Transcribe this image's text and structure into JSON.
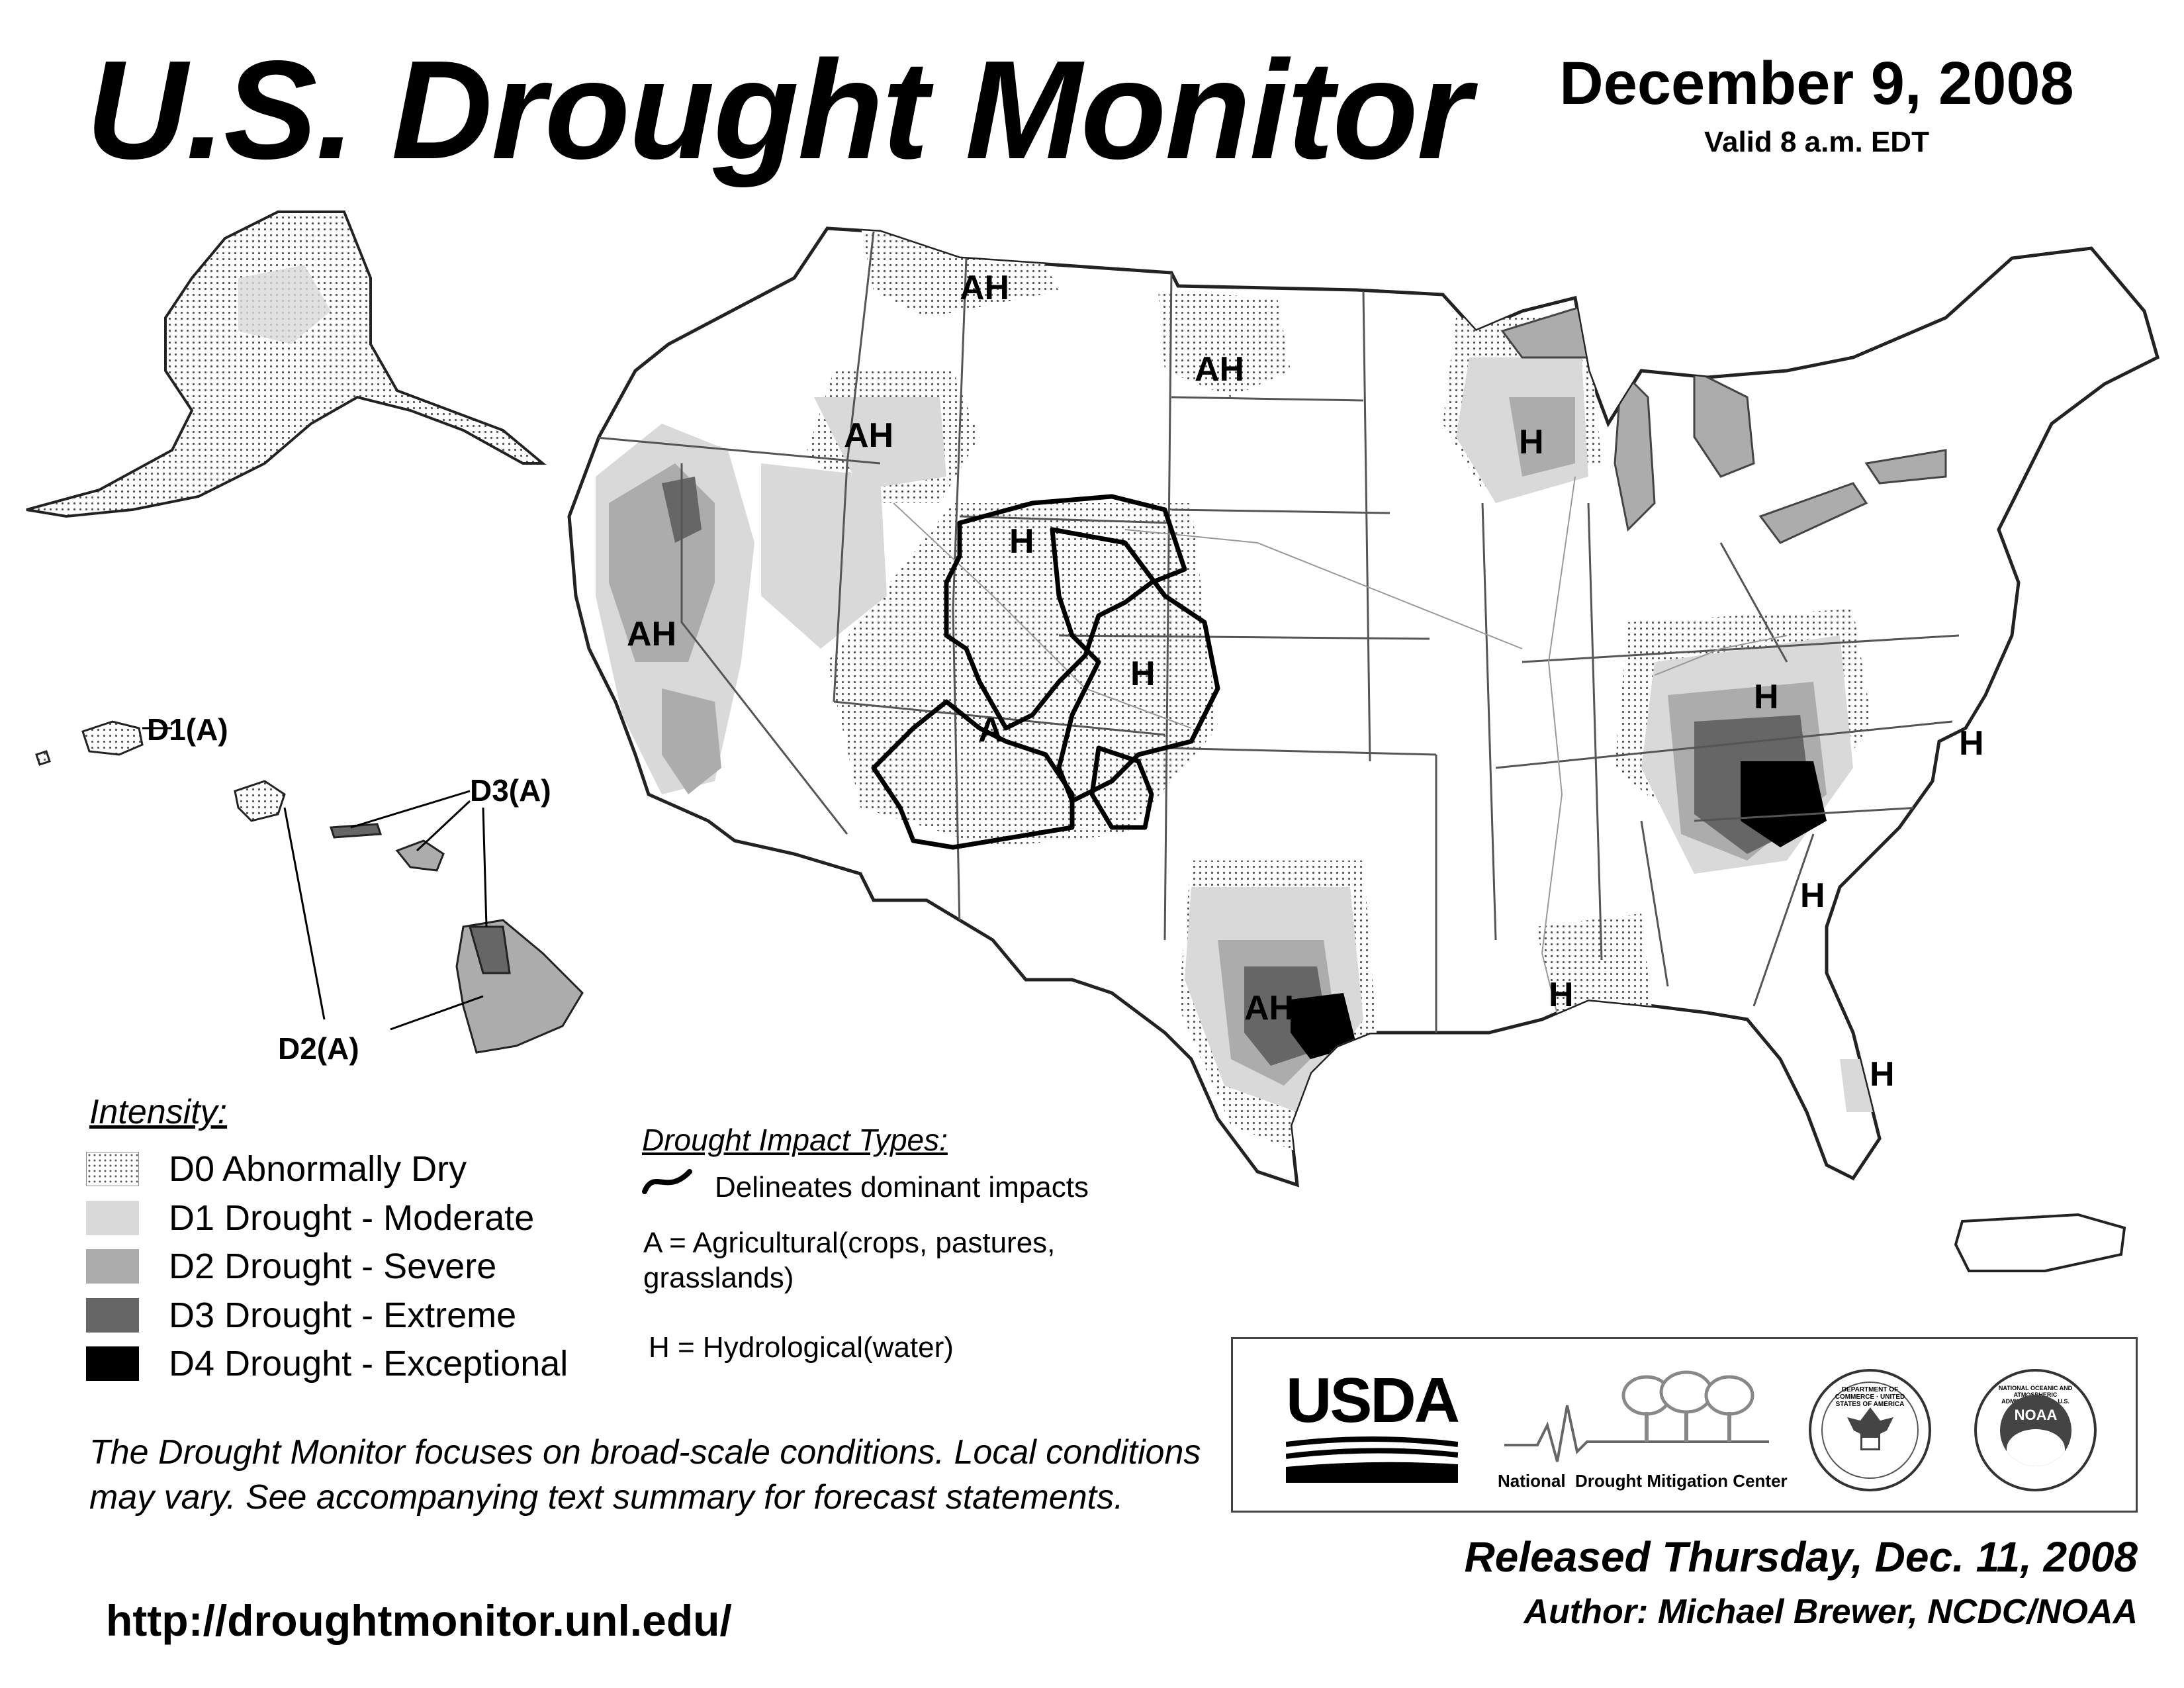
{
  "header": {
    "title": "U.S. Drought Monitor",
    "date": "December 9, 2008",
    "valid": "Valid 8 a.m. EDT"
  },
  "map_labels": {
    "ah_montana": "AH",
    "ah_dakota": "AH",
    "ah_idaho": "AH",
    "ah_california": "AH",
    "ah_texas": "AH",
    "h_wyoming": "H",
    "h_colorado": "H",
    "a_southwest": "A",
    "h_wisconsin": "H",
    "h_kentucky": "H",
    "h_carolina": "H",
    "h_georgia": "H",
    "h_louisiana": "H",
    "h_florida": "H"
  },
  "hawaii_labels": {
    "d1": "D1(A)",
    "d3": "D3(A)",
    "d2": "D2(A)"
  },
  "legend": {
    "heading": "Intensity:",
    "items": [
      {
        "label": "D0 Abnormally Dry"
      },
      {
        "label": "D1 Drought - Moderate"
      },
      {
        "label": "D2 Drought - Severe"
      },
      {
        "label": "D3 Drought - Extreme"
      },
      {
        "label": "D4 Drought - Exceptional"
      }
    ]
  },
  "impact": {
    "heading": "Drought Impact Types:",
    "delineates": "Delineates dominant impacts",
    "agricultural": "A = Agricultural(crops, pastures, grasslands)",
    "hydrological": "H = Hydrological(water)"
  },
  "disclaimer": "The Drought Monitor focuses on broad-scale conditions. Local conditions may vary. See accompanying text summary for forecast statements.",
  "url": "http://droughtmonitor.unl.edu/",
  "logos": {
    "usda": "USDA",
    "ndmc": "National  Drought Mitigation Center",
    "commerce": "DEPARTMENT OF COMMERCE · UNITED STATES OF AMERICA",
    "noaa": "NOAA",
    "noaa_ring": "NATIONAL OCEANIC AND ATMOSPHERIC ADMINISTRATION · U.S. DEPARTMENT OF COMMERCE"
  },
  "footer": {
    "released": "Released Thursday, Dec. 11, 2008",
    "author": "Author: Michael Brewer, NCDC/NOAA"
  },
  "colors": {
    "d0": "#ffffff",
    "d1": "#d9d9d9",
    "d2": "#acacac",
    "d3": "#666666",
    "d4": "#000000"
  }
}
